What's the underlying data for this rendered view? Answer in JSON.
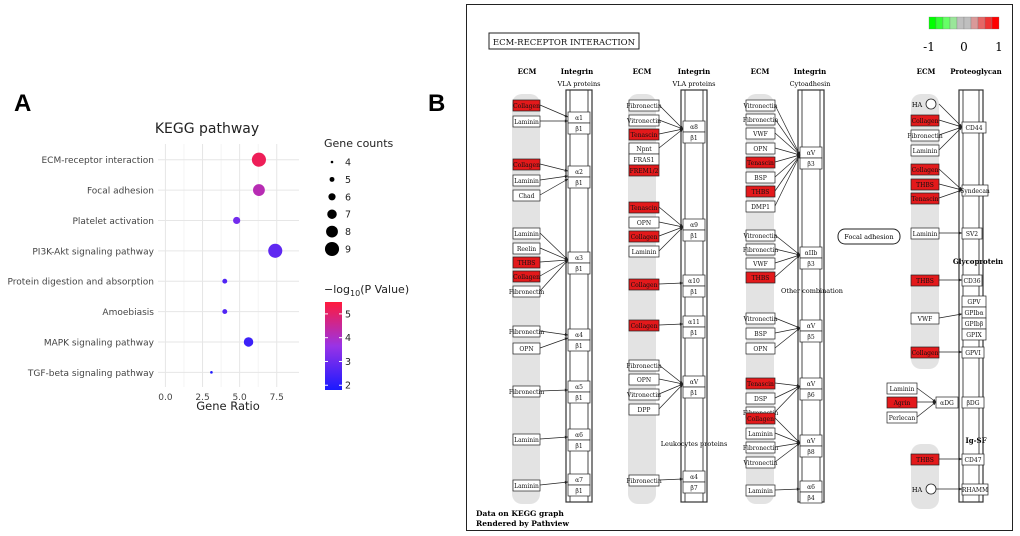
{
  "panel_a_letter": "A",
  "panel_b_letter": "B",
  "chart_data": {
    "type": "scatter",
    "title": "KEGG pathway",
    "xlabel": "Gene Ratio",
    "ylabel": "",
    "xlim": [
      -0.5,
      9.0
    ],
    "xticks": [
      0.0,
      2.5,
      5.0,
      7.5
    ],
    "xtick_labels": [
      "0.0",
      "2.5",
      "5.0",
      "7.5"
    ],
    "grid": true,
    "categories": [
      "ECM-receptor interaction",
      "Focal adhesion",
      "Platelet activation",
      "PI3K-Akt signaling pathway",
      "Protein digestion and absorption",
      "Amoebiasis",
      "MAPK signaling pathway",
      "TGF-beta signaling pathway"
    ],
    "series": [
      {
        "x": [
          6.3,
          6.3,
          4.8,
          7.4,
          4.0,
          4.0,
          5.6,
          3.1
        ],
        "gene_counts": [
          9,
          8,
          6,
          9,
          5,
          5,
          7,
          4
        ],
        "neg_log10_p": [
          5.2,
          4.2,
          3.1,
          2.8,
          2.6,
          2.6,
          2.3,
          1.9
        ]
      }
    ],
    "size_legend": {
      "title": "Gene counts",
      "values": [
        4,
        5,
        6,
        7,
        8,
        9
      ]
    },
    "color_legend": {
      "title": "-log10(P Value)",
      "title_main": "−log",
      "title_sub": "10",
      "title_end": "(P Value)",
      "ticks": [
        2,
        3,
        4,
        5
      ],
      "tick_labels": [
        "2",
        "3",
        "4",
        "5"
      ],
      "range": [
        1.8,
        5.5
      ],
      "low_color": "#1a1aff",
      "high_color": "#ff1a3c"
    }
  },
  "kegg": {
    "title": "ECM-RECEPTOR INTERACTION",
    "scale_labels": [
      "-1",
      "0",
      "1"
    ],
    "footer_line1": "Data on KEGG graph",
    "footer_line2": "Rendered by Pathview",
    "focal_adhesion": "Focal adhesion",
    "col1": {
      "h1": "ECM",
      "h2": "Integrin",
      "sub": "VLA proteins"
    },
    "col2": {
      "h1": "ECM",
      "h2": "Integrin",
      "sub": "VLA proteins",
      "leuko": "Leukocytes proteins"
    },
    "col3": {
      "h1": "ECM",
      "h2": "Integrin",
      "sub": "Cytoadhesin",
      "other": "Other combination"
    },
    "col4": {
      "h1": "ECM",
      "h2": "Proteoglycan",
      "glyco": "Glycoprotein",
      "igsf": "Ig-SF"
    },
    "highlight_color": "#e3191b",
    "nodes": {
      "collagen": "Collagen",
      "laminin": "Laminin",
      "chad": "Chad",
      "reelin": "Reelin",
      "thbs": "THBS",
      "fibronectin": "Fibronectin",
      "opn": "OPN",
      "vitronectin": "Vitronectin",
      "tenascin": "Tenascin",
      "npnt": "Npnt",
      "fras1": "FRAS1",
      "frem": "FREM1/2",
      "dpp": "DPP",
      "vwf": "VWF",
      "bsp": "BSP",
      "dmp1": "DMP1",
      "dsp": "DSP",
      "ha": "HA",
      "agrin": "Agrin",
      "perlecan": "Perlecan",
      "a1": "α1",
      "a2": "α2",
      "a3": "α3",
      "a4": "α4",
      "a5": "α5",
      "a6": "α6",
      "a7": "α7",
      "a8": "α8",
      "a9": "α9",
      "a10": "α10",
      "a11": "α11",
      "av": "αV",
      "a4b": "α4",
      "aIIb": "αIIb",
      "b1": "β1",
      "b3": "β3",
      "b5": "β5",
      "b6": "β6",
      "b7": "β7",
      "b8": "β8",
      "b4": "β4",
      "cd44": "CD44",
      "syndecan": "Syndecan",
      "sv2": "SV2",
      "cd36": "CD36",
      "gpv": "GPV",
      "gpiba": "GPIbα",
      "gpibb": "GPIbβ",
      "gpix": "GPIX",
      "gpvi": "GPVI",
      "adg": "αDG",
      "bdg": "βDG",
      "cd47": "CD47",
      "rhamm": "RHAMM"
    }
  }
}
